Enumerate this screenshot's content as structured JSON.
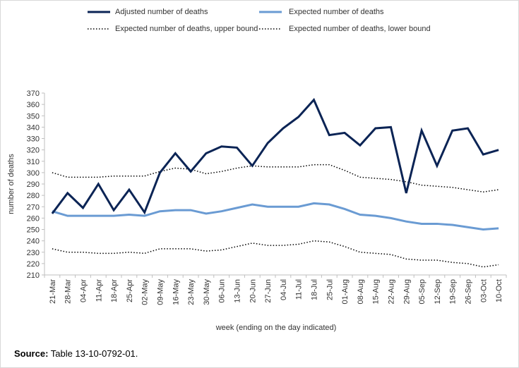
{
  "source": {
    "label": "Source:",
    "text": "Table 13-10-0792-01."
  },
  "colors": {
    "adjusted": "#0b2455",
    "expected": "#6a9bd3",
    "bounds": "#000000"
  },
  "chart_data": {
    "type": "line",
    "title": "",
    "xlabel": "week (ending on the day indicated)",
    "ylabel": "number of deaths",
    "ylim": [
      210,
      370
    ],
    "yticks": [
      210,
      220,
      230,
      240,
      250,
      260,
      270,
      280,
      290,
      300,
      310,
      320,
      330,
      340,
      350,
      360,
      370
    ],
    "grid": false,
    "legend_position": "top",
    "categories": [
      "21-Mar",
      "28-Mar",
      "04-Apr",
      "11-Apr",
      "18-Apr",
      "25-Apr",
      "02-May",
      "09-May",
      "16-May",
      "23-May",
      "30-May",
      "06-Jun",
      "13-Jun",
      "20-Jun",
      "27-Jun",
      "04-Jul",
      "11-Jul",
      "18-Jul",
      "25-Jul",
      "01-Aug",
      "08-Aug",
      "15-Aug",
      "22-Aug",
      "29-Aug",
      "05-Sep",
      "12-Sep",
      "19-Sep",
      "26-Sep",
      "03-Oct",
      "10-Oct"
    ],
    "series": [
      {
        "name": "Adjusted number of deaths",
        "style": "solid-thick",
        "values": [
          264,
          282,
          269,
          290,
          267,
          285,
          265,
          300,
          317,
          301,
          317,
          323,
          322,
          306,
          326,
          339,
          349,
          364,
          333,
          335,
          324,
          339,
          340,
          282,
          337,
          306,
          337,
          339,
          316,
          320
        ]
      },
      {
        "name": "Expected number of deaths",
        "style": "solid",
        "values": [
          266,
          262,
          262,
          262,
          262,
          263,
          262,
          266,
          267,
          267,
          264,
          266,
          269,
          272,
          270,
          270,
          270,
          273,
          272,
          268,
          263,
          262,
          260,
          257,
          255,
          255,
          254,
          252,
          250,
          251
        ]
      },
      {
        "name": "Expected number of deaths, upper bound",
        "style": "dotted",
        "values": [
          300,
          296,
          296,
          296,
          297,
          297,
          297,
          301,
          304,
          303,
          299,
          301,
          304,
          306,
          305,
          305,
          305,
          307,
          307,
          302,
          296,
          295,
          294,
          292,
          289,
          288,
          287,
          285,
          283,
          285
        ]
      },
      {
        "name": "Expected number of deaths, lower bound",
        "style": "dotted",
        "values": [
          233,
          230,
          230,
          229,
          229,
          230,
          229,
          233,
          233,
          233,
          231,
          232,
          235,
          238,
          236,
          236,
          237,
          240,
          239,
          235,
          230,
          229,
          228,
          224,
          223,
          223,
          221,
          220,
          217,
          219
        ]
      }
    ]
  }
}
